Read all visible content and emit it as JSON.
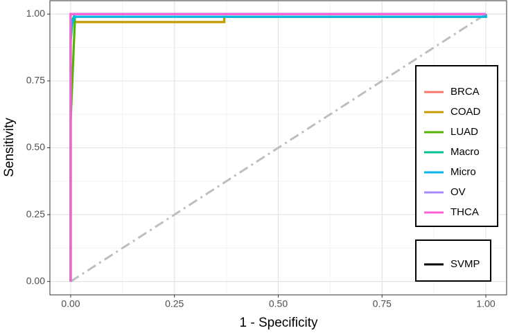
{
  "chart_data": {
    "type": "line",
    "xlabel": "1 - Specificity",
    "ylabel": "Sensitivity",
    "xlim": [
      -0.05,
      1.05
    ],
    "ylim": [
      -0.05,
      1.05
    ],
    "xticks": [
      {
        "value": 0,
        "label": "0.00"
      },
      {
        "value": 0.25,
        "label": "0.25"
      },
      {
        "value": 0.5,
        "label": "0.50"
      },
      {
        "value": 0.75,
        "label": "0.75"
      },
      {
        "value": 1,
        "label": "1.00"
      }
    ],
    "yticks": [
      {
        "value": 0,
        "label": "0.00"
      },
      {
        "value": 0.25,
        "label": "0.25"
      },
      {
        "value": 0.5,
        "label": "0.50"
      },
      {
        "value": 0.75,
        "label": "0.75"
      },
      {
        "value": 1,
        "label": "1.00"
      }
    ],
    "grid": true,
    "minor_grid": true,
    "series": [
      {
        "name": "BRCA",
        "color": "#F8766D",
        "x": [
          0,
          0,
          1
        ],
        "values": [
          0,
          1,
          1
        ]
      },
      {
        "name": "COAD",
        "color": "#C49A00",
        "x": [
          0,
          0,
          0.37,
          0.37,
          1,
          1
        ],
        "values": [
          0,
          0.97,
          0.97,
          0.99,
          0.99,
          1
        ]
      },
      {
        "name": "LUAD",
        "color": "#53B400",
        "x": [
          0,
          0,
          0.01,
          0.01,
          1,
          1
        ],
        "values": [
          0,
          0.6,
          0.97,
          0.99,
          0.99,
          1
        ]
      },
      {
        "name": "Macro",
        "color": "#00C094",
        "x": [
          0,
          0,
          0.005,
          0.01,
          1
        ],
        "values": [
          0,
          0.9,
          0.98,
          1,
          1
        ]
      },
      {
        "name": "Micro",
        "color": "#00B6EB",
        "x": [
          0,
          0,
          0.01,
          1,
          1
        ],
        "values": [
          0,
          0.95,
          0.99,
          0.99,
          1
        ]
      },
      {
        "name": "OV",
        "color": "#A58AFF",
        "x": [
          0,
          0,
          1
        ],
        "values": [
          0,
          1,
          1
        ]
      },
      {
        "name": "THCA",
        "color": "#FB61D7",
        "x": [
          0,
          0,
          1
        ],
        "values": [
          0,
          1,
          1
        ]
      }
    ],
    "linetype_legend": {
      "entries": [
        "SVMP"
      ],
      "color": "#000000"
    },
    "reference_line_color": "#bebebe"
  }
}
